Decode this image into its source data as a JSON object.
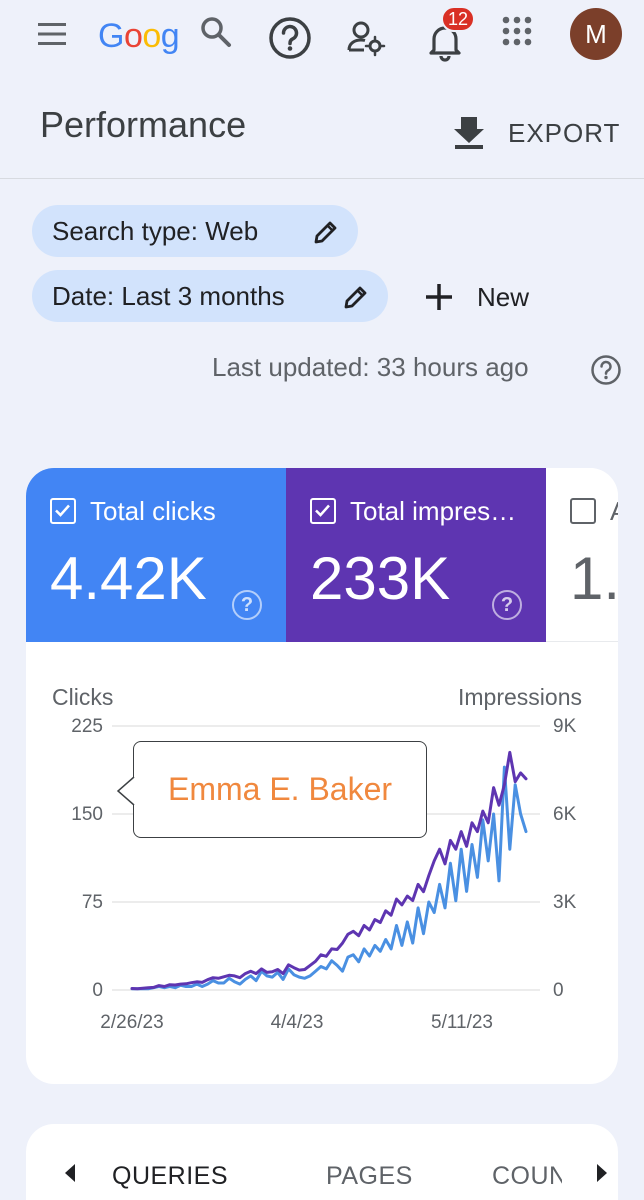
{
  "header": {
    "logo_letters": [
      "G",
      "o",
      "o",
      "g"
    ],
    "logo_colors": [
      "#4285f4",
      "#ea4335",
      "#fbbc05",
      "#4285f4"
    ],
    "notification_count": "12",
    "avatar_initial": "M",
    "icons": [
      "menu-icon",
      "search-icon",
      "help-icon",
      "manage-accounts-icon",
      "bell-icon",
      "apps-icon"
    ]
  },
  "page": {
    "title": "Performance",
    "export_label": "EXPORT"
  },
  "filters": {
    "search_type": "Search type: Web",
    "date": "Date: Last 3 months",
    "new_label": "New"
  },
  "last_updated": "Last updated: 33 hours ago",
  "metrics": [
    {
      "label": "Total clicks",
      "value": "4.42K",
      "checked": true,
      "color": "#4285f4"
    },
    {
      "label": "Total impres…",
      "value": "233K",
      "checked": true,
      "color": "#5e35b1"
    },
    {
      "label": "A",
      "value": "1.",
      "checked": false,
      "color": "#ffffff"
    }
  ],
  "tooltip_text": "Emma E. Baker",
  "chart_data": {
    "type": "line",
    "left_axis_title": "Clicks",
    "right_axis_title": "Impressions",
    "left_ticks": [
      "225",
      "150",
      "75",
      "0"
    ],
    "right_ticks": [
      "9K",
      "6K",
      "3K",
      "0"
    ],
    "x_ticks": [
      "2/26/23",
      "4/4/23",
      "5/11/23"
    ],
    "ylim_left": [
      0,
      225
    ],
    "ylim_right": [
      0,
      9000
    ],
    "grid": true,
    "series": [
      {
        "name": "Clicks",
        "axis": "left",
        "color": "#4a90e2",
        "values": [
          1,
          1,
          1,
          1,
          2,
          3,
          2,
          3,
          2,
          4,
          3,
          3,
          5,
          3,
          5,
          8,
          6,
          6,
          10,
          7,
          5,
          9,
          12,
          8,
          16,
          12,
          11,
          15,
          9,
          18,
          13,
          11,
          10,
          12,
          16,
          20,
          18,
          25,
          21,
          16,
          28,
          30,
          24,
          35,
          29,
          38,
          33,
          43,
          35,
          55,
          38,
          58,
          40,
          70,
          48,
          75,
          66,
          90,
          70,
          108,
          76,
          120,
          84,
          124,
          96,
          145,
          110,
          150,
          93,
          190,
          120,
          175,
          150,
          135
        ]
      },
      {
        "name": "Impressions",
        "axis": "right",
        "color": "#5e35b1",
        "values": [
          50,
          40,
          60,
          80,
          90,
          150,
          120,
          180,
          170,
          200,
          210,
          250,
          280,
          260,
          350,
          420,
          400,
          450,
          500,
          480,
          420,
          560,
          640,
          560,
          720,
          600,
          620,
          700,
          560,
          860,
          760,
          680,
          700,
          840,
          980,
          1200,
          1150,
          1400,
          1380,
          1600,
          1900,
          2000,
          1850,
          2200,
          2050,
          2400,
          2300,
          2700,
          2550,
          3100,
          2900,
          3200,
          3050,
          3600,
          3350,
          3900,
          4400,
          4800,
          4300,
          5100,
          4800,
          5400,
          4900,
          5700,
          5400,
          6100,
          5700,
          6900,
          6300,
          7000,
          8100,
          7100,
          7400,
          7200
        ]
      }
    ]
  },
  "tabs": [
    "QUERIES",
    "PAGES",
    "COUN"
  ]
}
